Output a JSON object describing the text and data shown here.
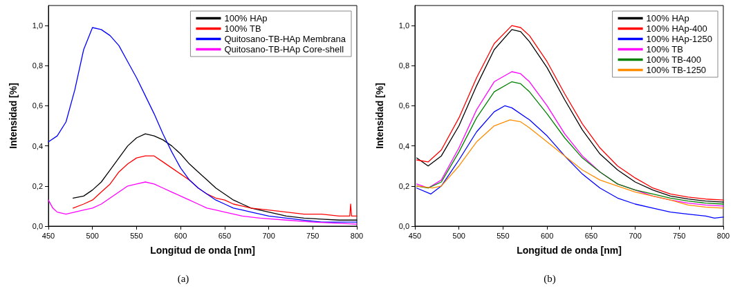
{
  "chart_data": [
    {
      "type": "line",
      "xlabel": "Longitud de onda [nm]",
      "ylabel": "Intensidad [%]",
      "annotations": [
        "(a)"
      ],
      "legend": "top right",
      "grid": false,
      "marker": "none",
      "line_style": "solid",
      "xlim": [
        450,
        800
      ],
      "xticks": [
        450,
        500,
        550,
        600,
        650,
        700,
        750,
        800
      ],
      "ylim": [
        0,
        1.1
      ],
      "yticks": [
        {
          "value": 0,
          "label": "0,0"
        },
        {
          "value": 0.2,
          "label": "0,2"
        },
        {
          "value": 0.4,
          "label": "0,4"
        },
        {
          "value": 0.6,
          "label": "0,6"
        },
        {
          "value": 0.8,
          "label": "0,8"
        },
        {
          "value": 1.0,
          "label": "1,0"
        }
      ],
      "series": [
        {
          "name": "100% HAp",
          "color": "#000000",
          "x": [
            478,
            490,
            500,
            510,
            520,
            530,
            540,
            550,
            560,
            570,
            580,
            590,
            600,
            610,
            620,
            630,
            640,
            650,
            660,
            670,
            680,
            700,
            720,
            740,
            760,
            780,
            800
          ],
          "values": [
            0.14,
            0.15,
            0.18,
            0.22,
            0.28,
            0.34,
            0.4,
            0.44,
            0.46,
            0.45,
            0.43,
            0.4,
            0.36,
            0.31,
            0.27,
            0.23,
            0.19,
            0.16,
            0.13,
            0.11,
            0.09,
            0.07,
            0.05,
            0.04,
            0.035,
            0.03,
            0.03
          ]
        },
        {
          "name": "100% TB",
          "color": "#ff0000",
          "x": [
            478,
            490,
            500,
            510,
            520,
            530,
            540,
            550,
            560,
            570,
            580,
            590,
            600,
            610,
            620,
            630,
            640,
            650,
            660,
            670,
            680,
            700,
            720,
            740,
            760,
            780,
            792,
            793,
            794,
            800
          ],
          "values": [
            0.09,
            0.11,
            0.13,
            0.17,
            0.21,
            0.27,
            0.31,
            0.34,
            0.35,
            0.35,
            0.32,
            0.29,
            0.26,
            0.23,
            0.19,
            0.16,
            0.14,
            0.13,
            0.11,
            0.1,
            0.09,
            0.08,
            0.07,
            0.06,
            0.06,
            0.05,
            0.05,
            0.11,
            0.05,
            0.05
          ]
        },
        {
          "name": "Quitosano-TB-HAp Membrana",
          "color": "#0000ff",
          "x": [
            450,
            460,
            470,
            480,
            490,
            500,
            510,
            520,
            530,
            540,
            550,
            560,
            570,
            580,
            590,
            600,
            610,
            620,
            630,
            640,
            650,
            660,
            670,
            680,
            700,
            720,
            740,
            760,
            780,
            800
          ],
          "values": [
            0.42,
            0.45,
            0.52,
            0.68,
            0.88,
            0.99,
            0.98,
            0.95,
            0.9,
            0.82,
            0.74,
            0.65,
            0.56,
            0.46,
            0.37,
            0.29,
            0.23,
            0.19,
            0.16,
            0.13,
            0.11,
            0.09,
            0.08,
            0.07,
            0.05,
            0.04,
            0.03,
            0.02,
            0.02,
            0.02
          ]
        },
        {
          "name": "Quitosano-TB-HAp Core-shell",
          "color": "#ff00ff",
          "x": [
            450,
            455,
            460,
            470,
            480,
            490,
            500,
            510,
            520,
            530,
            540,
            550,
            560,
            570,
            580,
            590,
            600,
            610,
            620,
            630,
            640,
            650,
            670,
            690,
            720,
            750,
            800
          ],
          "values": [
            0.13,
            0.09,
            0.07,
            0.06,
            0.07,
            0.08,
            0.09,
            0.11,
            0.14,
            0.17,
            0.2,
            0.21,
            0.22,
            0.21,
            0.19,
            0.17,
            0.15,
            0.13,
            0.11,
            0.09,
            0.08,
            0.07,
            0.05,
            0.04,
            0.03,
            0.02,
            0.01
          ]
        }
      ]
    },
    {
      "type": "line",
      "xlabel": "Longitud de onda [nm]",
      "ylabel": "Intensidad [%]",
      "annotations": [
        "(b)"
      ],
      "legend": "top right",
      "grid": false,
      "marker": "none",
      "line_style": "solid",
      "xlim": [
        450,
        800
      ],
      "xticks": [
        450,
        500,
        550,
        600,
        650,
        700,
        750,
        800
      ],
      "ylim": [
        0,
        1.1
      ],
      "yticks": [
        {
          "value": 0,
          "label": "0,0"
        },
        {
          "value": 0.2,
          "label": "0,2"
        },
        {
          "value": 0.4,
          "label": "0,4"
        },
        {
          "value": 0.6,
          "label": "0,6"
        },
        {
          "value": 0.8,
          "label": "0,8"
        },
        {
          "value": 1.0,
          "label": "1,0"
        }
      ],
      "series": [
        {
          "name": "100% HAp",
          "color": "#000000",
          "x": [
            452,
            465,
            480,
            500,
            520,
            540,
            560,
            570,
            580,
            600,
            620,
            640,
            660,
            680,
            700,
            720,
            740,
            760,
            780,
            800
          ],
          "values": [
            0.34,
            0.3,
            0.35,
            0.5,
            0.7,
            0.88,
            0.98,
            0.97,
            0.92,
            0.79,
            0.63,
            0.48,
            0.36,
            0.28,
            0.22,
            0.18,
            0.15,
            0.135,
            0.125,
            0.12
          ]
        },
        {
          "name": "100% HAp-400",
          "color": "#ff0000",
          "x": [
            452,
            465,
            480,
            500,
            520,
            540,
            560,
            570,
            580,
            600,
            620,
            640,
            660,
            680,
            700,
            720,
            740,
            760,
            780,
            800
          ],
          "values": [
            0.33,
            0.32,
            0.38,
            0.54,
            0.74,
            0.91,
            1.0,
            0.99,
            0.95,
            0.82,
            0.66,
            0.51,
            0.39,
            0.3,
            0.24,
            0.19,
            0.16,
            0.145,
            0.135,
            0.13
          ]
        },
        {
          "name": "100% HAp-1250",
          "color": "#0000ff",
          "x": [
            452,
            468,
            480,
            500,
            520,
            540,
            552,
            560,
            580,
            600,
            620,
            640,
            660,
            680,
            700,
            720,
            740,
            760,
            780,
            790,
            800
          ],
          "values": [
            0.19,
            0.16,
            0.2,
            0.33,
            0.47,
            0.57,
            0.6,
            0.59,
            0.53,
            0.45,
            0.35,
            0.26,
            0.19,
            0.14,
            0.11,
            0.09,
            0.07,
            0.06,
            0.05,
            0.04,
            0.045
          ]
        },
        {
          "name": "100% TB",
          "color": "#ff00ff",
          "x": [
            452,
            465,
            480,
            500,
            520,
            540,
            560,
            570,
            580,
            600,
            620,
            640,
            660,
            680,
            700,
            720,
            740,
            760,
            780,
            800
          ],
          "values": [
            0.21,
            0.19,
            0.23,
            0.39,
            0.58,
            0.72,
            0.77,
            0.76,
            0.72,
            0.6,
            0.46,
            0.35,
            0.27,
            0.21,
            0.18,
            0.15,
            0.13,
            0.115,
            0.105,
            0.1
          ]
        },
        {
          "name": "100% TB-400",
          "color": "#008000",
          "x": [
            452,
            465,
            480,
            500,
            520,
            540,
            560,
            570,
            580,
            600,
            620,
            640,
            660,
            680,
            700,
            720,
            740,
            760,
            780,
            800
          ],
          "values": [
            0.2,
            0.19,
            0.22,
            0.37,
            0.54,
            0.67,
            0.72,
            0.71,
            0.67,
            0.56,
            0.44,
            0.34,
            0.27,
            0.21,
            0.18,
            0.16,
            0.14,
            0.125,
            0.115,
            0.11
          ]
        },
        {
          "name": "100% TB-1250",
          "color": "#ff8c00",
          "x": [
            452,
            470,
            480,
            500,
            520,
            540,
            558,
            570,
            580,
            600,
            620,
            640,
            660,
            680,
            700,
            720,
            740,
            760,
            780,
            800
          ],
          "values": [
            0.2,
            0.19,
            0.2,
            0.3,
            0.42,
            0.5,
            0.53,
            0.52,
            0.49,
            0.42,
            0.35,
            0.28,
            0.23,
            0.2,
            0.17,
            0.15,
            0.13,
            0.105,
            0.095,
            0.09
          ]
        }
      ]
    }
  ]
}
